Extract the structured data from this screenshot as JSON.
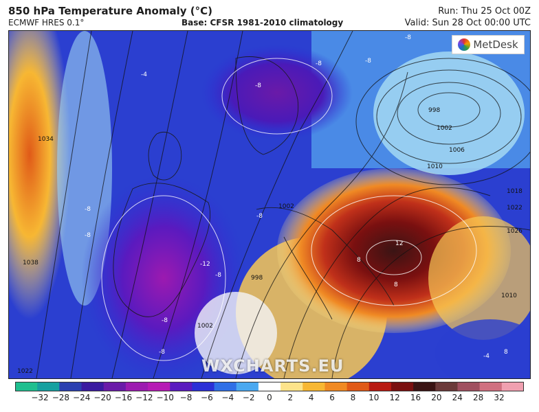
{
  "header": {
    "title": "850 hPa Temperature Anomaly (°C)",
    "model": "ECMWF HRES 0.1°",
    "base": "Base: CFSR 1981-2010 climatology",
    "run": "Run: Thu 25 Oct 00Z",
    "valid": "Valid: Sun 28 Oct 00:00 UTC"
  },
  "logo": {
    "text": "MetDesk",
    "icon": "metdesk-logo-icon"
  },
  "watermark": "WXCHARTS.EU",
  "colorbar": {
    "ticks": [
      "−32",
      "−28",
      "−24",
      "−20",
      "−16",
      "−12",
      "−10",
      "−8",
      "−6",
      "−4",
      "−2",
      "0",
      "2",
      "4",
      "6",
      "8",
      "10",
      "12",
      "16",
      "20",
      "24",
      "28",
      "32"
    ],
    "colors": [
      "#1fbf8f",
      "#16a0a0",
      "#2a3fb0",
      "#3a1aa0",
      "#6a1aa8",
      "#9c1ab0",
      "#b61ab5",
      "#5a1abf",
      "#2b2fd6",
      "#2f6fe6",
      "#4aa8f0",
      "#ffffff",
      "#fde38a",
      "#f7b733",
      "#f08a24",
      "#e05a18",
      "#b81a12",
      "#7a1010",
      "#3a1414",
      "#6b3a3a",
      "#a05060",
      "#d07080",
      "#f0a0b0"
    ]
  },
  "isobar_labels": [
    "1034",
    "1038",
    "1022",
    "998",
    "1002",
    "1006",
    "1010",
    "1018",
    "1022",
    "1026",
    "1002",
    "1002",
    "998",
    "1010"
  ],
  "anomaly_labels": [
    "-4",
    "-8",
    "-8",
    "-8",
    "-8",
    "-8",
    "-12",
    "-8",
    "-8",
    "-8",
    "-8",
    "12",
    "8",
    "8",
    "8",
    "-4",
    "-8"
  ]
}
